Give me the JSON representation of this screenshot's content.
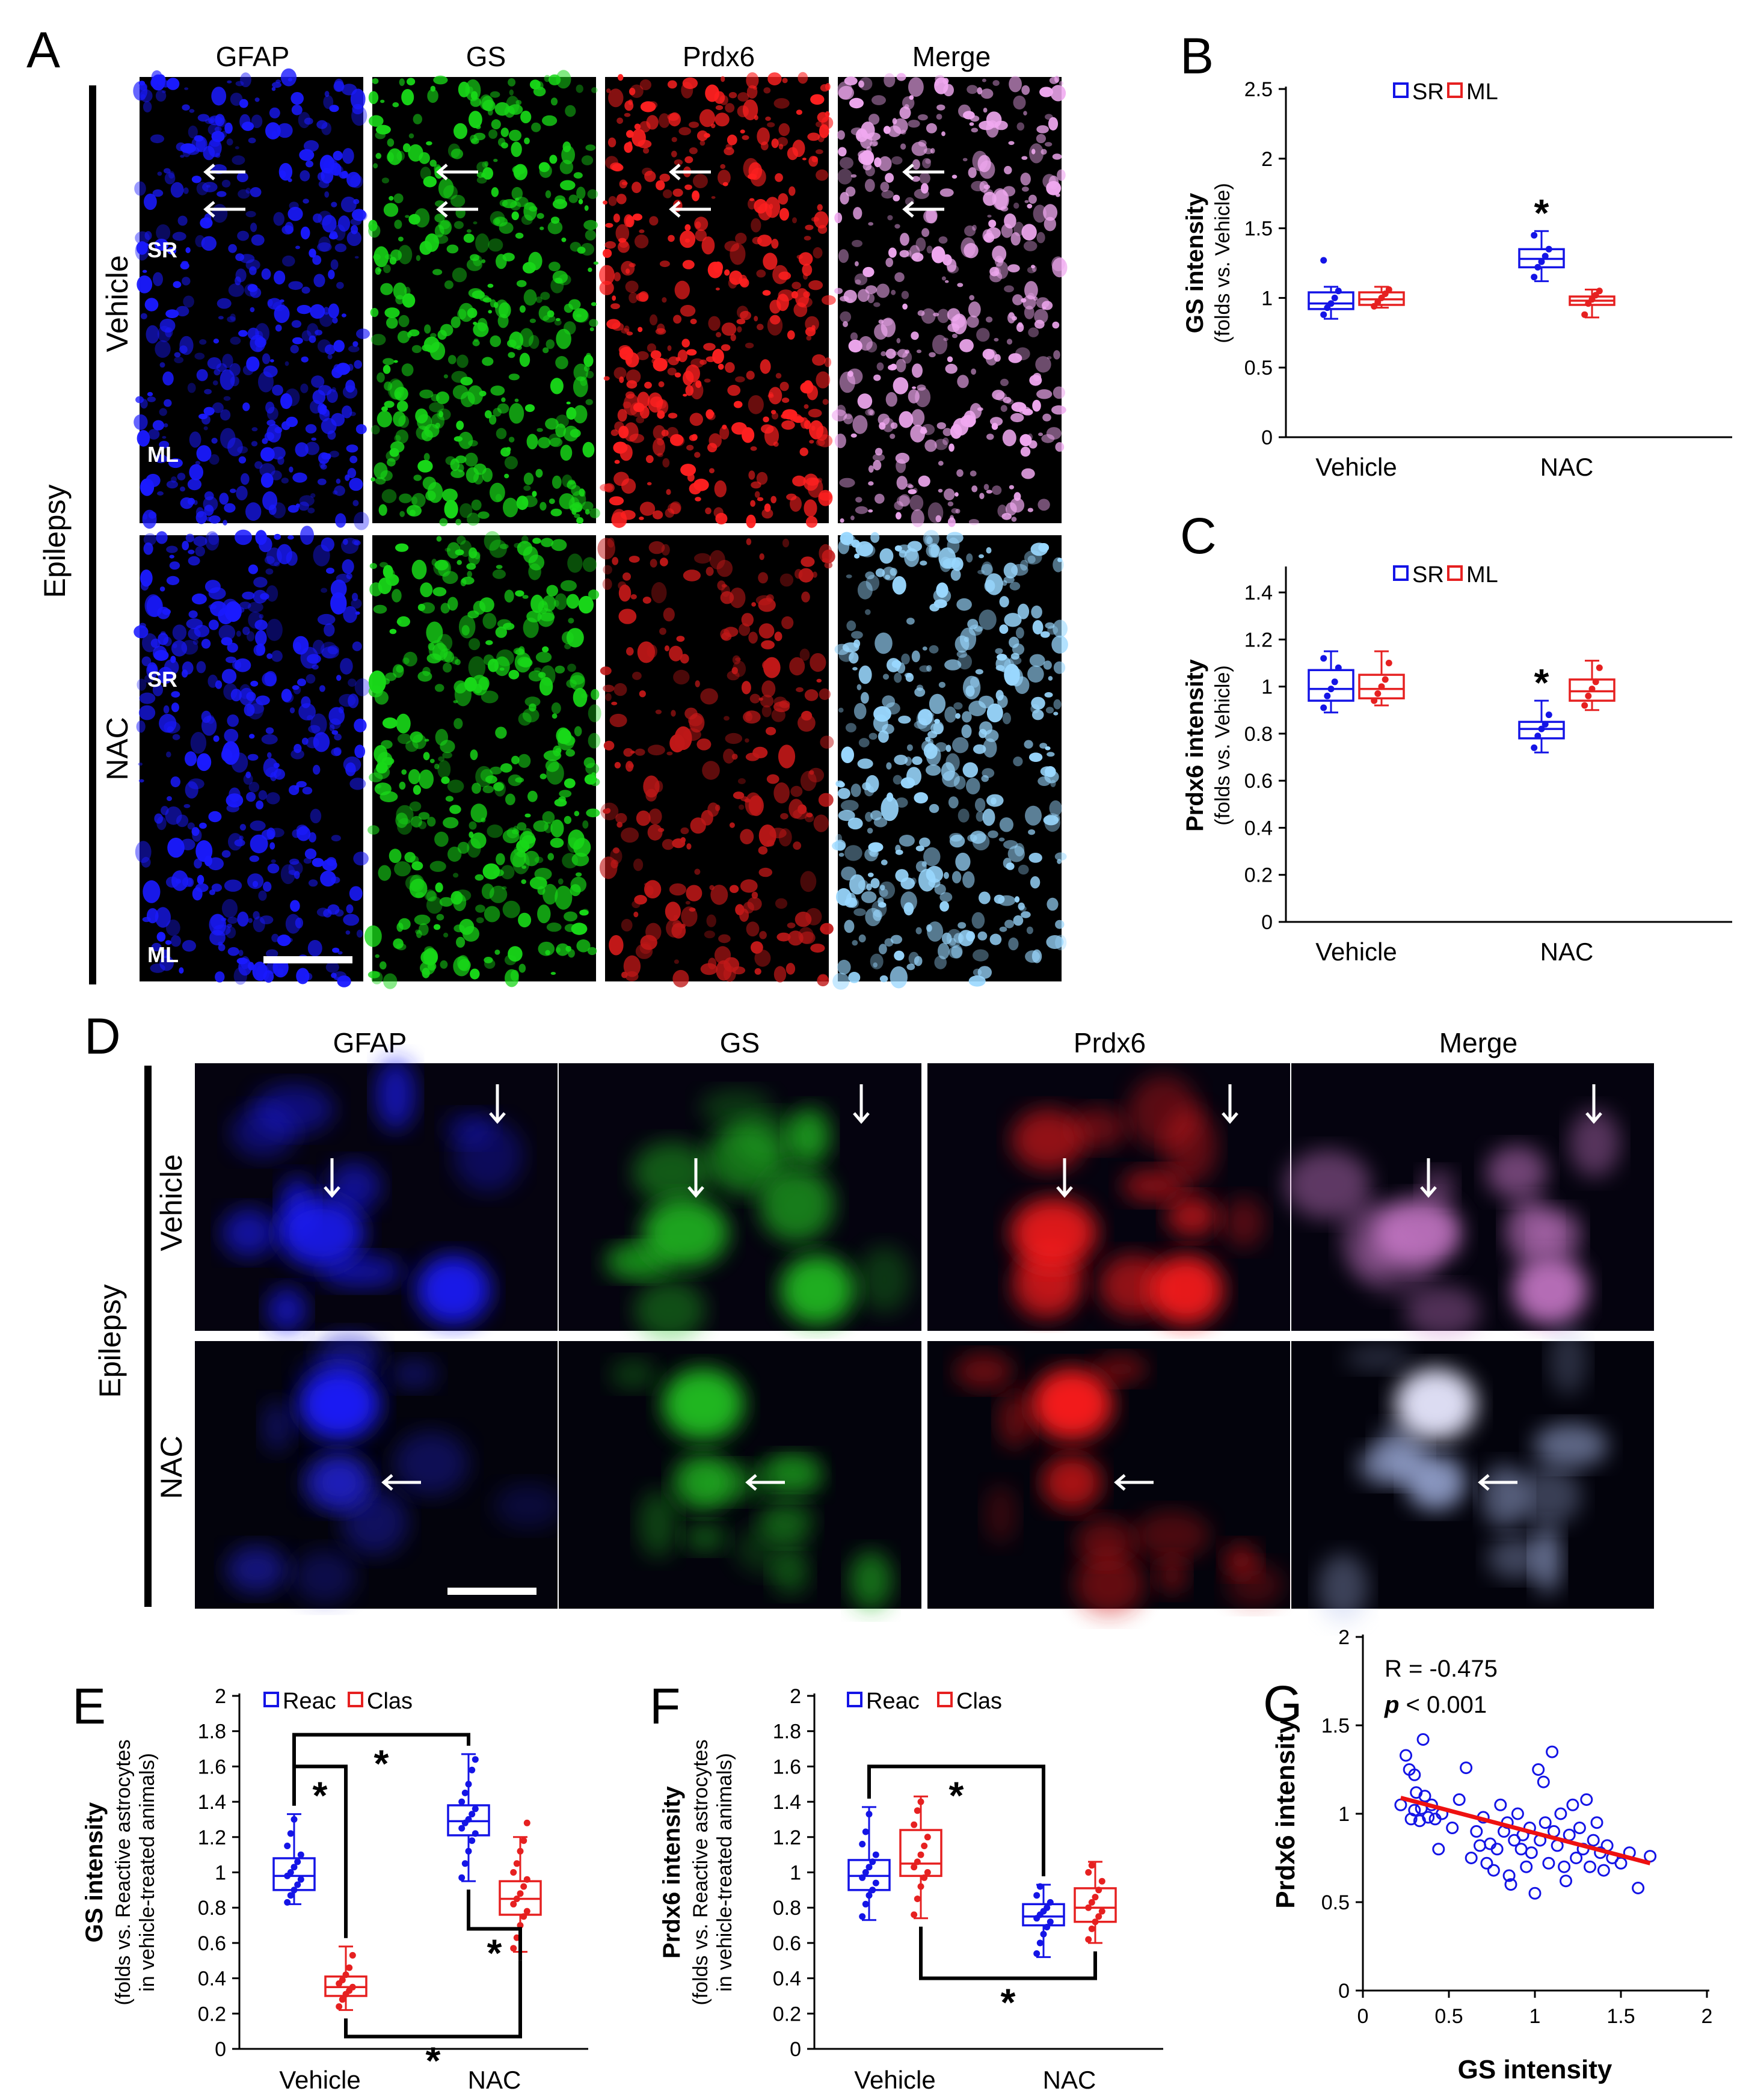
{
  "panels": {
    "A": {
      "letter": "A",
      "channels": [
        "GFAP",
        "GS",
        "Prdx6",
        "Merge"
      ],
      "group": "Epilepsy",
      "rows": [
        "Vehicle",
        "NAC"
      ],
      "regions": [
        "SR",
        "ML"
      ]
    },
    "D": {
      "letter": "D",
      "channels": [
        "GFAP",
        "GS",
        "Prdx6",
        "Merge"
      ],
      "group": "Epilepsy",
      "rows": [
        "Vehicle",
        "NAC"
      ]
    }
  },
  "colors": {
    "blue": "#1414e6",
    "red": "#e62020",
    "fit": "#ee1111",
    "gfap": "#1a1aff",
    "gs": "#18d818",
    "prdx6": "#ff2020"
  },
  "chart_data": [
    {
      "id": "B",
      "letter": "B",
      "type": "box",
      "categories": [
        "Vehicle",
        "NAC"
      ],
      "ylabel": "GS intensity",
      "ylabel2": "(folds vs. Vehicle)",
      "ylim": [
        0,
        2.5
      ],
      "yticks": [
        "0",
        "0.5",
        "1",
        "1.5",
        "2",
        "2.5"
      ],
      "legend": [
        "SR",
        "ML"
      ],
      "series": [
        {
          "name": "SR",
          "color": "blue",
          "boxes": [
            {
              "min": 0.85,
              "q1": 0.92,
              "median": 0.96,
              "q3": 1.04,
              "max": 1.08,
              "points": [
                0.88,
                0.93,
                0.96,
                1.0,
                1.05,
                1.27
              ]
            },
            {
              "min": 1.12,
              "q1": 1.22,
              "median": 1.28,
              "q3": 1.35,
              "max": 1.48,
              "points": [
                1.15,
                1.22,
                1.26,
                1.3,
                1.35,
                1.45
              ]
            }
          ]
        },
        {
          "name": "ML",
          "color": "red",
          "boxes": [
            {
              "min": 0.93,
              "q1": 0.95,
              "median": 0.99,
              "q3": 1.04,
              "max": 1.08,
              "points": [
                0.94,
                0.97,
                1.0,
                1.03,
                1.06
              ]
            },
            {
              "min": 0.86,
              "q1": 0.95,
              "median": 0.98,
              "q3": 1.01,
              "max": 1.06,
              "points": [
                0.88,
                0.96,
                0.99,
                1.02,
                1.05
              ]
            }
          ]
        }
      ],
      "stars": [
        {
          "cat": 1,
          "series": 0,
          "label": "*"
        }
      ]
    },
    {
      "id": "C",
      "letter": "C",
      "type": "box",
      "categories": [
        "Vehicle",
        "NAC"
      ],
      "ylabel": "Prdx6 intensity",
      "ylabel2": "(folds vs. Vehicle)",
      "ylim": [
        0,
        1.5
      ],
      "yticks": [
        "0",
        "0.2",
        "0.4",
        "0.6",
        "0.8",
        "1",
        "1.2",
        "1.4"
      ],
      "legend": [
        "SR",
        "ML"
      ],
      "series": [
        {
          "name": "SR",
          "color": "blue",
          "boxes": [
            {
              "min": 0.89,
              "q1": 0.94,
              "median": 0.99,
              "q3": 1.07,
              "max": 1.15,
              "points": [
                0.91,
                0.96,
                0.99,
                1.02,
                1.08,
                1.12
              ]
            },
            {
              "min": 0.72,
              "q1": 0.78,
              "median": 0.82,
              "q3": 0.85,
              "max": 0.94,
              "points": [
                0.74,
                0.79,
                0.82,
                0.84,
                0.88
              ]
            }
          ]
        },
        {
          "name": "ML",
          "color": "red",
          "boxes": [
            {
              "min": 0.92,
              "q1": 0.95,
              "median": 0.99,
              "q3": 1.05,
              "max": 1.15,
              "points": [
                0.94,
                0.97,
                1.0,
                1.03,
                1.1
              ]
            },
            {
              "min": 0.9,
              "q1": 0.94,
              "median": 0.98,
              "q3": 1.03,
              "max": 1.11,
              "points": [
                0.92,
                0.96,
                0.99,
                1.02,
                1.08
              ]
            }
          ]
        }
      ],
      "stars": [
        {
          "cat": 1,
          "series": 0,
          "label": "*"
        }
      ]
    },
    {
      "id": "E",
      "letter": "E",
      "type": "box",
      "categories": [
        "Vehicle",
        "NAC"
      ],
      "ylabel": "GS intensity",
      "ylabel2": "(folds vs. Reactive astrocytes",
      "ylabel3": "in vehicle-treated animals)",
      "ylim": [
        0,
        2
      ],
      "yticks": [
        "0",
        "0.2",
        "0.4",
        "0.6",
        "0.8",
        "1",
        "1.2",
        "1.4",
        "1.6",
        "1.8",
        "2"
      ],
      "legend": [
        "Reac",
        "Clas"
      ],
      "series": [
        {
          "name": "Reac",
          "color": "blue",
          "boxes": [
            {
              "min": 0.82,
              "q1": 0.9,
              "median": 0.98,
              "q3": 1.08,
              "max": 1.33,
              "points": [
                0.83,
                0.87,
                0.9,
                0.93,
                0.96,
                0.98,
                1.0,
                1.03,
                1.06,
                1.1,
                1.15,
                1.22,
                1.3
              ]
            },
            {
              "min": 0.95,
              "q1": 1.21,
              "median": 1.29,
              "q3": 1.38,
              "max": 1.67,
              "points": [
                0.97,
                1.05,
                1.12,
                1.18,
                1.22,
                1.25,
                1.28,
                1.3,
                1.33,
                1.36,
                1.4,
                1.45,
                1.5,
                1.58,
                1.64
              ]
            }
          ]
        },
        {
          "name": "Clas",
          "color": "red",
          "boxes": [
            {
              "min": 0.22,
              "q1": 0.3,
              "median": 0.35,
              "q3": 0.41,
              "max": 0.58,
              "points": [
                0.24,
                0.28,
                0.31,
                0.33,
                0.35,
                0.37,
                0.39,
                0.42,
                0.46,
                0.53
              ]
            },
            {
              "min": 0.55,
              "q1": 0.76,
              "median": 0.85,
              "q3": 0.95,
              "max": 1.2,
              "points": [
                0.57,
                0.63,
                0.7,
                0.75,
                0.78,
                0.82,
                0.85,
                0.88,
                0.92,
                0.96,
                1.0,
                1.05,
                1.12,
                1.18,
                1.28
              ]
            }
          ]
        }
      ],
      "brackets": [
        {
          "from": [
            0,
            0
          ],
          "to": [
            1,
            0
          ],
          "side": "top",
          "y": 1.78,
          "label": "*"
        },
        {
          "from": [
            0,
            0
          ],
          "to": [
            0,
            1
          ],
          "side": "top",
          "y": 1.6,
          "label": "*"
        },
        {
          "from": [
            1,
            0
          ],
          "to": [
            1,
            1
          ],
          "side": "bottom",
          "y": 0.68,
          "label": "*"
        },
        {
          "from": [
            0,
            1
          ],
          "to": [
            1,
            1
          ],
          "side": "bottom",
          "y": 0.07,
          "label": "*"
        }
      ]
    },
    {
      "id": "F",
      "letter": "F",
      "type": "box",
      "categories": [
        "Vehicle",
        "NAC"
      ],
      "ylabel": "Prdx6 intensity",
      "ylabel2": "(folds vs. Reactive astrocytes",
      "ylabel3": "in vehicle-treated animals)",
      "ylim": [
        0,
        2
      ],
      "yticks": [
        "0",
        "0.2",
        "0.4",
        "0.6",
        "0.8",
        "1",
        "1.2",
        "1.4",
        "1.6",
        "1.8",
        "2"
      ],
      "legend": [
        "Reac",
        "Clas"
      ],
      "series": [
        {
          "name": "Reac",
          "color": "blue",
          "boxes": [
            {
              "min": 0.73,
              "q1": 0.9,
              "median": 0.98,
              "q3": 1.07,
              "max": 1.37,
              "points": [
                0.75,
                0.82,
                0.87,
                0.9,
                0.94,
                0.97,
                1.0,
                1.03,
                1.06,
                1.1,
                1.16,
                1.23,
                1.33
              ]
            },
            {
              "min": 0.52,
              "q1": 0.7,
              "median": 0.75,
              "q3": 0.82,
              "max": 0.93,
              "points": [
                0.54,
                0.6,
                0.65,
                0.69,
                0.72,
                0.74,
                0.76,
                0.78,
                0.8,
                0.83,
                0.87,
                0.92
              ]
            }
          ]
        },
        {
          "name": "Clas",
          "color": "red",
          "boxes": [
            {
              "min": 0.74,
              "q1": 0.98,
              "median": 1.05,
              "q3": 1.24,
              "max": 1.43,
              "points": [
                0.76,
                0.85,
                0.92,
                0.97,
                1.0,
                1.03,
                1.06,
                1.1,
                1.15,
                1.2,
                1.27,
                1.35,
                1.4
              ]
            },
            {
              "min": 0.6,
              "q1": 0.72,
              "median": 0.8,
              "q3": 0.91,
              "max": 1.06,
              "points": [
                0.62,
                0.68,
                0.72,
                0.75,
                0.78,
                0.8,
                0.83,
                0.86,
                0.9,
                0.95,
                1.0,
                1.04
              ]
            }
          ]
        }
      ],
      "brackets": [
        {
          "from": [
            0,
            0
          ],
          "to": [
            1,
            0
          ],
          "side": "top",
          "y": 1.6,
          "label": "*"
        },
        {
          "from": [
            0,
            1
          ],
          "to": [
            1,
            1
          ],
          "side": "bottom",
          "y": 0.4,
          "label": "*"
        }
      ]
    },
    {
      "id": "G",
      "letter": "G",
      "type": "scatter",
      "xlabel": "GS intensity",
      "ylabel": "Prdx6 intensity",
      "xlim": [
        0,
        2
      ],
      "ylim": [
        0,
        2
      ],
      "xticks": [
        "0",
        "0.5",
        "1",
        "1.5",
        "2"
      ],
      "yticks": [
        "0",
        "0.5",
        "1",
        "1.5",
        "2"
      ],
      "annotation_r": "R = -0.475",
      "annotation_p_italic": "p",
      "annotation_p_rest": " < 0.001",
      "fit": {
        "x1": 0.22,
        "y1": 1.09,
        "x2": 1.67,
        "y2": 0.72
      },
      "points": [
        [
          0.22,
          1.05
        ],
        [
          0.25,
          1.33
        ],
        [
          0.27,
          1.25
        ],
        [
          0.28,
          0.97
        ],
        [
          0.3,
          1.22
        ],
        [
          0.3,
          1.02
        ],
        [
          0.31,
          1.12
        ],
        [
          0.33,
          0.96
        ],
        [
          0.34,
          1.03
        ],
        [
          0.35,
          1.42
        ],
        [
          0.36,
          1.1
        ],
        [
          0.38,
          0.98
        ],
        [
          0.4,
          1.05
        ],
        [
          0.42,
          0.97
        ],
        [
          0.44,
          0.8
        ],
        [
          0.46,
          1.0
        ],
        [
          0.52,
          0.92
        ],
        [
          0.56,
          1.08
        ],
        [
          0.6,
          1.26
        ],
        [
          0.63,
          0.75
        ],
        [
          0.66,
          0.9
        ],
        [
          0.68,
          0.82
        ],
        [
          0.7,
          0.98
        ],
        [
          0.72,
          0.72
        ],
        [
          0.74,
          0.83
        ],
        [
          0.76,
          0.68
        ],
        [
          0.78,
          0.8
        ],
        [
          0.8,
          1.05
        ],
        [
          0.82,
          0.9
        ],
        [
          0.84,
          0.95
        ],
        [
          0.85,
          0.65
        ],
        [
          0.86,
          0.6
        ],
        [
          0.88,
          0.85
        ],
        [
          0.9,
          1.0
        ],
        [
          0.92,
          0.8
        ],
        [
          0.93,
          0.88
        ],
        [
          0.95,
          0.7
        ],
        [
          0.97,
          0.92
        ],
        [
          0.98,
          0.78
        ],
        [
          1.0,
          0.55
        ],
        [
          1.02,
          1.25
        ],
        [
          1.03,
          0.85
        ],
        [
          1.05,
          1.18
        ],
        [
          1.06,
          0.95
        ],
        [
          1.08,
          0.72
        ],
        [
          1.1,
          1.35
        ],
        [
          1.11,
          0.9
        ],
        [
          1.13,
          0.82
        ],
        [
          1.15,
          1.0
        ],
        [
          1.17,
          0.7
        ],
        [
          1.18,
          0.62
        ],
        [
          1.2,
          0.88
        ],
        [
          1.22,
          1.05
        ],
        [
          1.24,
          0.75
        ],
        [
          1.26,
          0.92
        ],
        [
          1.28,
          0.8
        ],
        [
          1.3,
          1.08
        ],
        [
          1.32,
          0.7
        ],
        [
          1.34,
          0.85
        ],
        [
          1.36,
          0.95
        ],
        [
          1.38,
          0.78
        ],
        [
          1.4,
          0.68
        ],
        [
          1.42,
          0.82
        ],
        [
          1.45,
          0.75
        ],
        [
          1.5,
          0.72
        ],
        [
          1.55,
          0.78
        ],
        [
          1.6,
          0.58
        ],
        [
          1.67,
          0.76
        ]
      ]
    }
  ]
}
